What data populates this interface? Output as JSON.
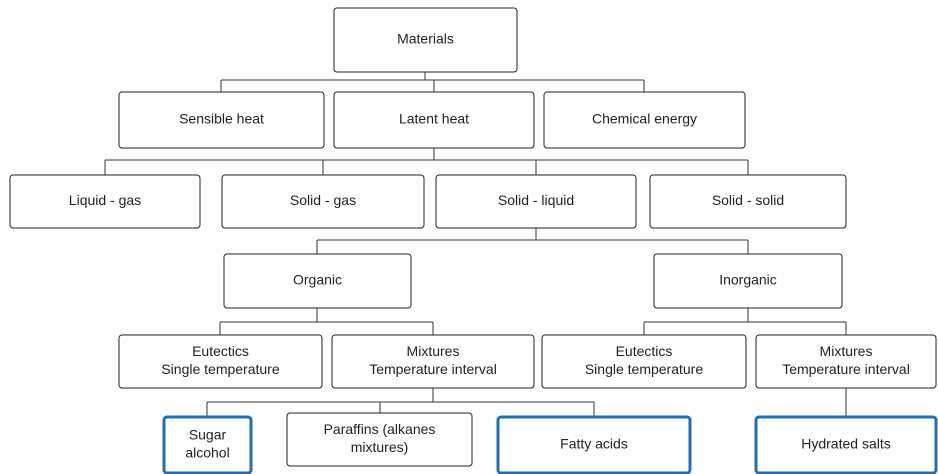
{
  "nodes": [
    {
      "lines": [
        "Materials"
      ]
    },
    {
      "lines": [
        "Sensible heat"
      ]
    },
    {
      "lines": [
        "Latent heat"
      ]
    },
    {
      "lines": [
        "Chemical energy"
      ]
    },
    {
      "lines": [
        "Liquid - gas"
      ]
    },
    {
      "lines": [
        "Solid - gas"
      ]
    },
    {
      "lines": [
        "Solid - liquid"
      ]
    },
    {
      "lines": [
        "Solid - solid"
      ]
    },
    {
      "lines": [
        "Organic"
      ]
    },
    {
      "lines": [
        "Inorganic"
      ]
    },
    {
      "lines": [
        "Eutectics",
        "Single temperature"
      ]
    },
    {
      "lines": [
        "Mixtures",
        "Temperature interval"
      ]
    },
    {
      "lines": [
        "Eutectics",
        "Single temperature"
      ]
    },
    {
      "lines": [
        "Mixtures",
        "Temperature interval"
      ]
    },
    {
      "lines": [
        "Sugar",
        "alcohol"
      ]
    },
    {
      "lines": [
        "Paraffins (alkanes",
        "mixtures)"
      ]
    },
    {
      "lines": [
        "Fatty acids"
      ]
    },
    {
      "lines": [
        "Hydrated salts"
      ]
    }
  ]
}
